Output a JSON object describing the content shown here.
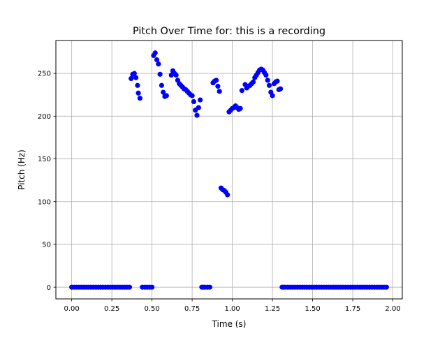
{
  "chart_data": {
    "type": "scatter",
    "title": "Pitch Over Time for: this is a recording",
    "xlabel": "Time (s)",
    "ylabel": "Pitch (Hz)",
    "xlim": [
      -0.0985,
      2.0585
    ],
    "ylim": [
      -13.75,
      288.5
    ],
    "xticks": [
      0.0,
      0.25,
      0.5,
      0.75,
      1.0,
      1.25,
      1.5,
      1.75,
      2.0
    ],
    "xtick_labels": [
      "0.00",
      "0.25",
      "0.50",
      "0.75",
      "1.00",
      "1.25",
      "1.50",
      "1.75",
      "2.00"
    ],
    "yticks": [
      0,
      50,
      100,
      150,
      200,
      250
    ],
    "ytick_labels": [
      "0",
      "50",
      "100",
      "150",
      "200",
      "250"
    ],
    "grid": true,
    "marker_color": "#0000ff",
    "series": [
      {
        "x": [
          0.0,
          0.015,
          0.03,
          0.045,
          0.06,
          0.075,
          0.09,
          0.105,
          0.12,
          0.135,
          0.15,
          0.165,
          0.18,
          0.195,
          0.21,
          0.225,
          0.24,
          0.255,
          0.27,
          0.285,
          0.3,
          0.315,
          0.33,
          0.345,
          0.36,
          0.37,
          0.38,
          0.39,
          0.4,
          0.41,
          0.415,
          0.425,
          0.44,
          0.455,
          0.47,
          0.485,
          0.5,
          0.51,
          0.52,
          0.53,
          0.54,
          0.55,
          0.56,
          0.57,
          0.58,
          0.59,
          0.62,
          0.63,
          0.64,
          0.65,
          0.66,
          0.67,
          0.68,
          0.69,
          0.7,
          0.71,
          0.72,
          0.73,
          0.74,
          0.75,
          0.76,
          0.77,
          0.78,
          0.79,
          0.8,
          0.81,
          0.82,
          0.83,
          0.845,
          0.86,
          0.88,
          0.89,
          0.9,
          0.91,
          0.92,
          0.93,
          0.94,
          0.95,
          0.96,
          0.97,
          0.98,
          0.99,
          1.0,
          1.01,
          1.02,
          1.03,
          1.04,
          1.05,
          1.06,
          1.08,
          1.09,
          1.1,
          1.11,
          1.12,
          1.13,
          1.14,
          1.15,
          1.16,
          1.17,
          1.18,
          1.19,
          1.2,
          1.21,
          1.22,
          1.23,
          1.24,
          1.25,
          1.26,
          1.27,
          1.28,
          1.29,
          1.3,
          1.31,
          1.32,
          1.33,
          1.345,
          1.36,
          1.375,
          1.39,
          1.405,
          1.42,
          1.435,
          1.45,
          1.465,
          1.48,
          1.495,
          1.51,
          1.525,
          1.54,
          1.555,
          1.57,
          1.585,
          1.6,
          1.615,
          1.63,
          1.645,
          1.66,
          1.675,
          1.69,
          1.705,
          1.72,
          1.735,
          1.75,
          1.765,
          1.78,
          1.795,
          1.81,
          1.825,
          1.84,
          1.855,
          1.87,
          1.885,
          1.9,
          1.915,
          1.93,
          1.945,
          1.96
        ],
        "y": [
          0,
          0,
          0,
          0,
          0,
          0,
          0,
          0,
          0,
          0,
          0,
          0,
          0,
          0,
          0,
          0,
          0,
          0,
          0,
          0,
          0,
          0,
          0,
          0,
          0,
          244,
          249,
          250,
          245,
          236,
          227,
          221,
          0,
          0,
          0,
          0,
          0,
          271,
          274,
          266,
          261,
          249,
          236,
          228,
          223,
          224,
          248,
          253,
          250,
          248,
          242,
          238,
          236,
          234,
          232,
          231,
          229,
          227,
          225,
          224,
          217,
          207,
          201,
          210,
          219,
          0,
          0,
          0,
          0,
          0,
          239,
          241,
          242,
          235,
          229,
          116,
          114,
          113,
          111,
          108,
          205,
          207,
          209,
          210,
          212,
          210,
          208,
          209,
          230,
          237,
          233,
          235,
          236,
          238,
          240,
          245,
          248,
          251,
          254,
          255,
          254,
          251,
          248,
          242,
          236,
          228,
          224,
          238,
          240,
          241,
          231,
          232,
          0,
          0,
          0,
          0,
          0,
          0,
          0,
          0,
          0,
          0,
          0,
          0,
          0,
          0,
          0,
          0,
          0,
          0,
          0,
          0,
          0,
          0,
          0,
          0,
          0,
          0,
          0,
          0,
          0,
          0,
          0,
          0,
          0,
          0,
          0,
          0,
          0,
          0,
          0,
          0,
          0,
          0,
          0,
          0,
          0
        ]
      }
    ]
  }
}
